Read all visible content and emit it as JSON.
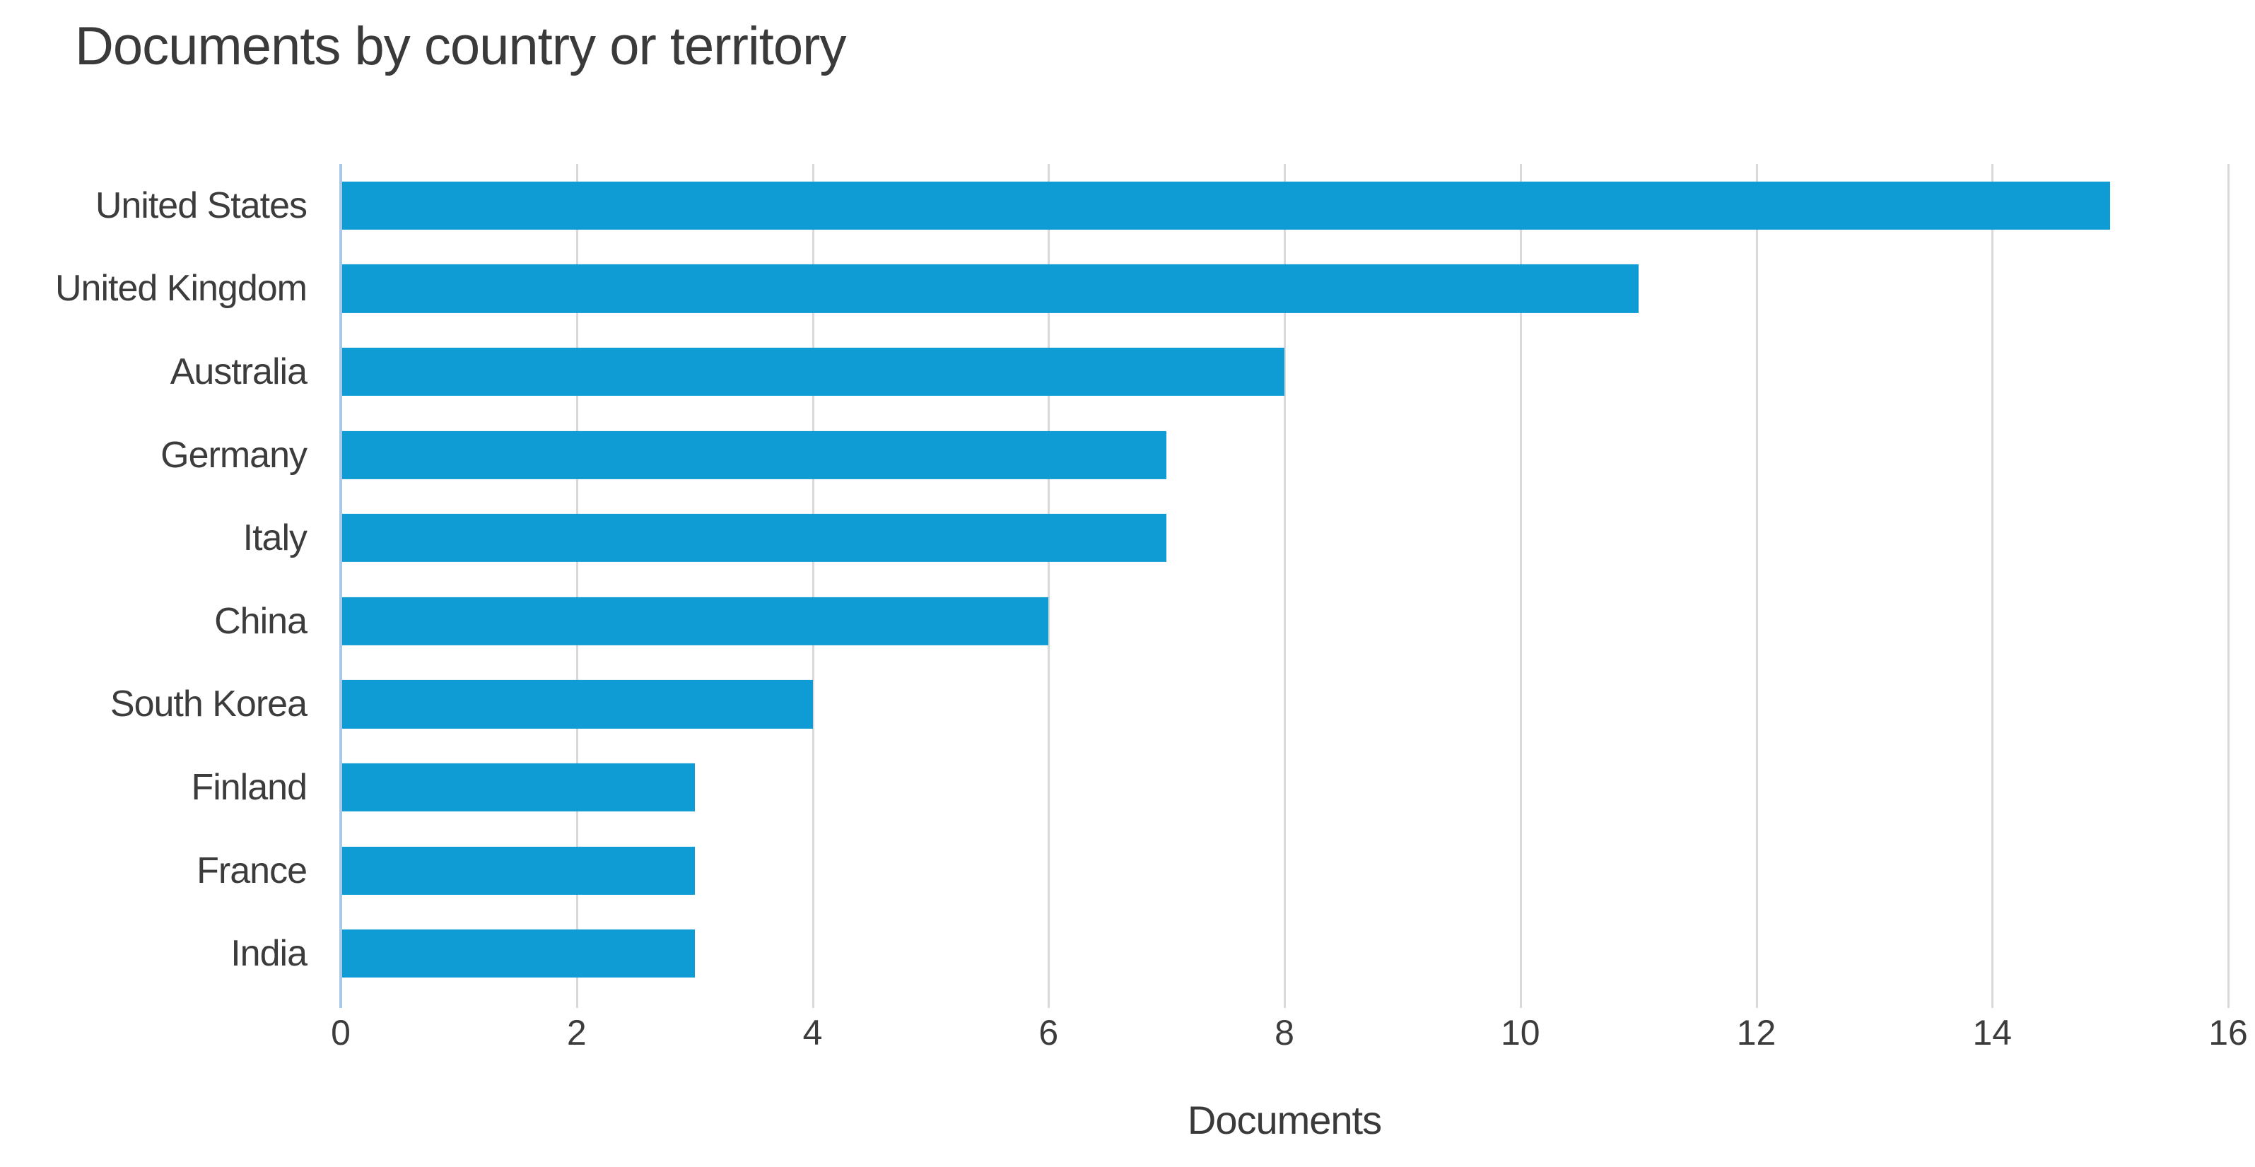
{
  "chart_data": {
    "type": "bar",
    "orientation": "horizontal",
    "title": "Documents by country or territory",
    "xlabel": "Documents",
    "ylabel": "",
    "categories": [
      "United States",
      "United Kingdom",
      "Australia",
      "Germany",
      "Italy",
      "China",
      "South Korea",
      "Finland",
      "France",
      "India"
    ],
    "values": [
      15,
      11,
      8,
      7,
      7,
      6,
      4,
      3,
      3,
      3
    ],
    "xlim": [
      0,
      16
    ],
    "xticks": [
      0,
      2,
      4,
      6,
      8,
      10,
      12,
      14,
      16
    ],
    "grid": "vertical gridlines at each x tick",
    "legend": "none",
    "colors": {
      "bar": "#0f9bd3",
      "zero_axis_line": "#a9c9e8",
      "gridline": "#d9d9d9",
      "text": "#3c3c3c",
      "background": "#ffffff"
    }
  }
}
